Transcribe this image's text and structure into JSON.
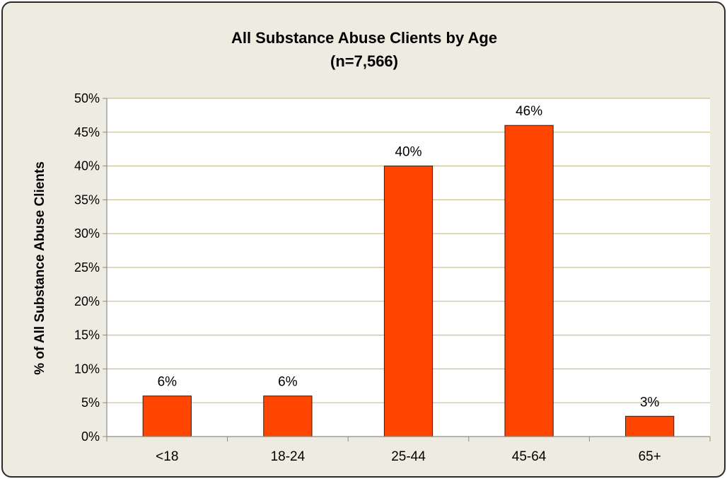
{
  "chart_data": {
    "type": "bar",
    "title": "All Substance Abuse Clients by Age",
    "subtitle": "(n=7,566)",
    "xlabel": "",
    "ylabel": "% of All Substance Abuse Clients",
    "categories": [
      "<18",
      "18-24",
      "25-44",
      "45-64",
      "65+"
    ],
    "values": [
      6,
      6,
      40,
      46,
      3
    ],
    "data_labels": [
      "6%",
      "6%",
      "40%",
      "46%",
      "3%"
    ],
    "ylim": [
      0,
      50
    ],
    "ytick_step": 5,
    "ytick_suffix": "%",
    "grid": true,
    "legend": "none",
    "colors": {
      "bar": "#ff4500",
      "bar_outline": "#3a1a0a",
      "plot_bg": "#ffffff",
      "frame_bg": "#eeece1",
      "grid": "#c9bf8f"
    }
  }
}
